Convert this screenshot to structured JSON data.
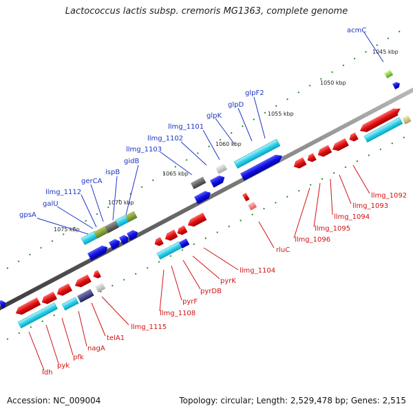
{
  "title": "Lactococcus lactis subsp. cremoris MG1363, complete genome",
  "footer": {
    "accession": "Accession: NC_009004",
    "topology": "Topology: circular; Length: 2,529,478 bp; Genes: 2,515"
  },
  "ticks": [
    "1045 kbp",
    "1050 kbp",
    "1055 kbp",
    "1060 kbp",
    "1065 kbp",
    "1070 kbp",
    "1075 kbp"
  ],
  "top_labels": [
    "acmC",
    "glpF2",
    "glpD",
    "glpK",
    "llmg_1101",
    "llmg_1102",
    "llmg_1103",
    "gidB",
    "ispB",
    "gerCA",
    "llmg_1112",
    "galU",
    "gpsA"
  ],
  "bottom_labels": [
    "llmg_1092",
    "llmg_1093",
    "llmg_1094",
    "llmg_1095",
    "llmg_1096",
    "rluC",
    "llmg_1104",
    "pyrK",
    "pyrDB",
    "pyrF",
    "llmg_1108",
    "llmg_1115",
    "telA1",
    "nagA",
    "pfk",
    "pyk",
    "ldh"
  ],
  "colors": {
    "forward_cds": "#1010e0",
    "reverse_cds": "#e01010",
    "orf_cyan": "#20c8e0",
    "backbone": "#7a7a7a",
    "tick_mark": "#228822"
  }
}
